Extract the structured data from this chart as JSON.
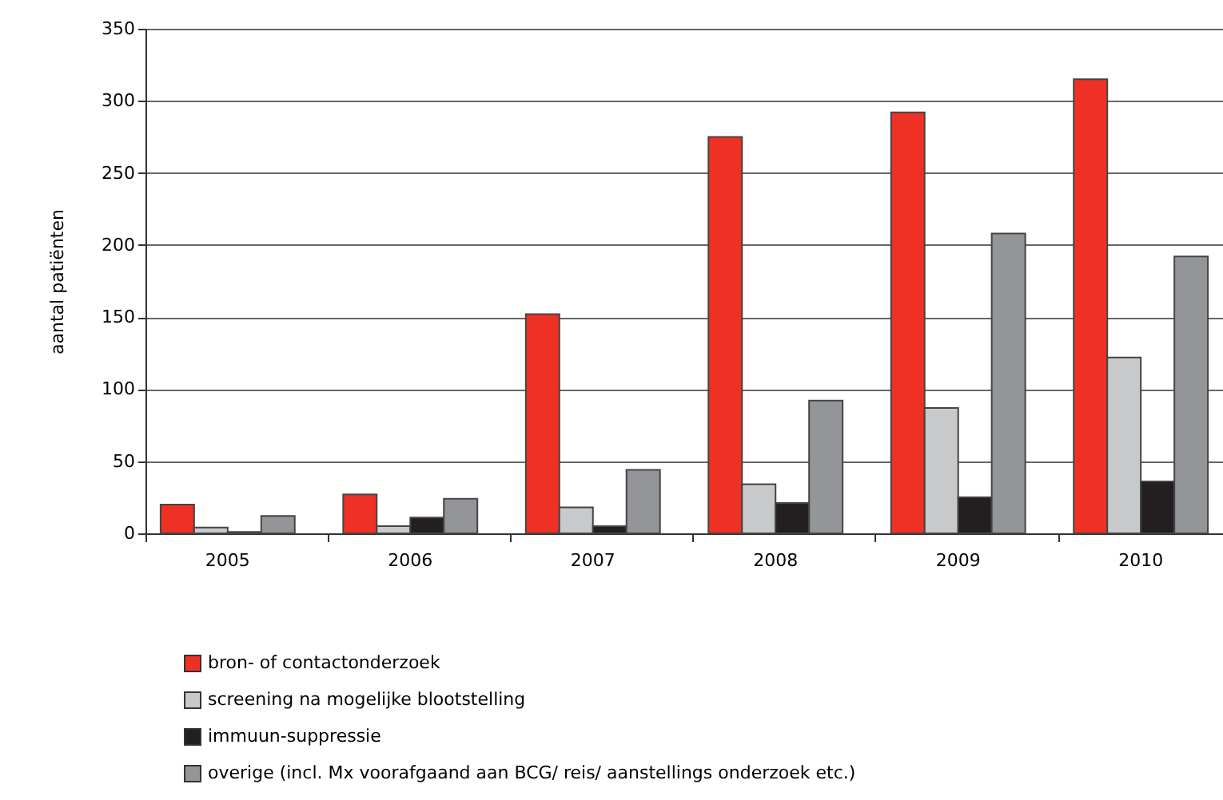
{
  "chart_data": {
    "type": "bar",
    "ylabel": "aantal patiënten",
    "categories": [
      "2005",
      "2006",
      "2007",
      "2008",
      "2009",
      "2010"
    ],
    "series": [
      {
        "name": "bron- of contactonderzoek",
        "color": "#ee3124",
        "values": [
          20,
          27,
          152,
          275,
          292,
          315
        ]
      },
      {
        "name": "screening na mogelijke blootstelling",
        "color": "#c8c9cb",
        "values": [
          4,
          5,
          18,
          34,
          87,
          122
        ]
      },
      {
        "name": "immuun-suppressie",
        "color": "#231f20",
        "values": [
          1,
          11,
          5,
          21,
          25,
          36
        ]
      },
      {
        "name": "overige (incl. Mx voorafgaand aan BCG/ reis/ aanstellings onderzoek etc.)",
        "color": "#939598",
        "values": [
          12,
          24,
          44,
          92,
          208,
          192
        ]
      }
    ],
    "ylim": [
      0,
      350
    ],
    "yticks": [
      0,
      50,
      100,
      150,
      200,
      250,
      300,
      350
    ],
    "grid": "y",
    "legend": "bottom left"
  }
}
